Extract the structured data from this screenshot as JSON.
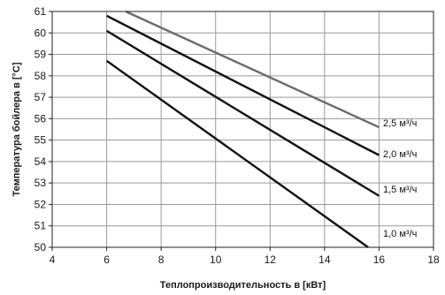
{
  "chart_data": {
    "type": "line",
    "xlabel": "Теплопроизводительность в [кВт]",
    "ylabel": "Температура бойлера в [°C]",
    "xlim": [
      4,
      18
    ],
    "ylim": [
      50,
      61
    ],
    "xticks": [
      4,
      6,
      8,
      10,
      12,
      14,
      16,
      18
    ],
    "yticks": [
      50,
      51,
      52,
      53,
      54,
      55,
      56,
      57,
      58,
      59,
      60,
      61
    ],
    "grid": true,
    "series": [
      {
        "name": "2,5 м³/ч",
        "color": "#6b6b6b",
        "points": [
          [
            6.7,
            61.0
          ],
          [
            16.0,
            55.6
          ]
        ]
      },
      {
        "name": "2,0 м³/ч",
        "color": "#111111",
        "points": [
          [
            6.0,
            60.8
          ],
          [
            16.0,
            54.3
          ]
        ]
      },
      {
        "name": "1,5 м³/ч",
        "color": "#111111",
        "points": [
          [
            6.0,
            60.1
          ],
          [
            16.0,
            52.4
          ]
        ]
      },
      {
        "name": "1,0 м³/ч",
        "color": "#111111",
        "points": [
          [
            6.0,
            58.7
          ],
          [
            15.6,
            50.0
          ]
        ]
      }
    ]
  }
}
